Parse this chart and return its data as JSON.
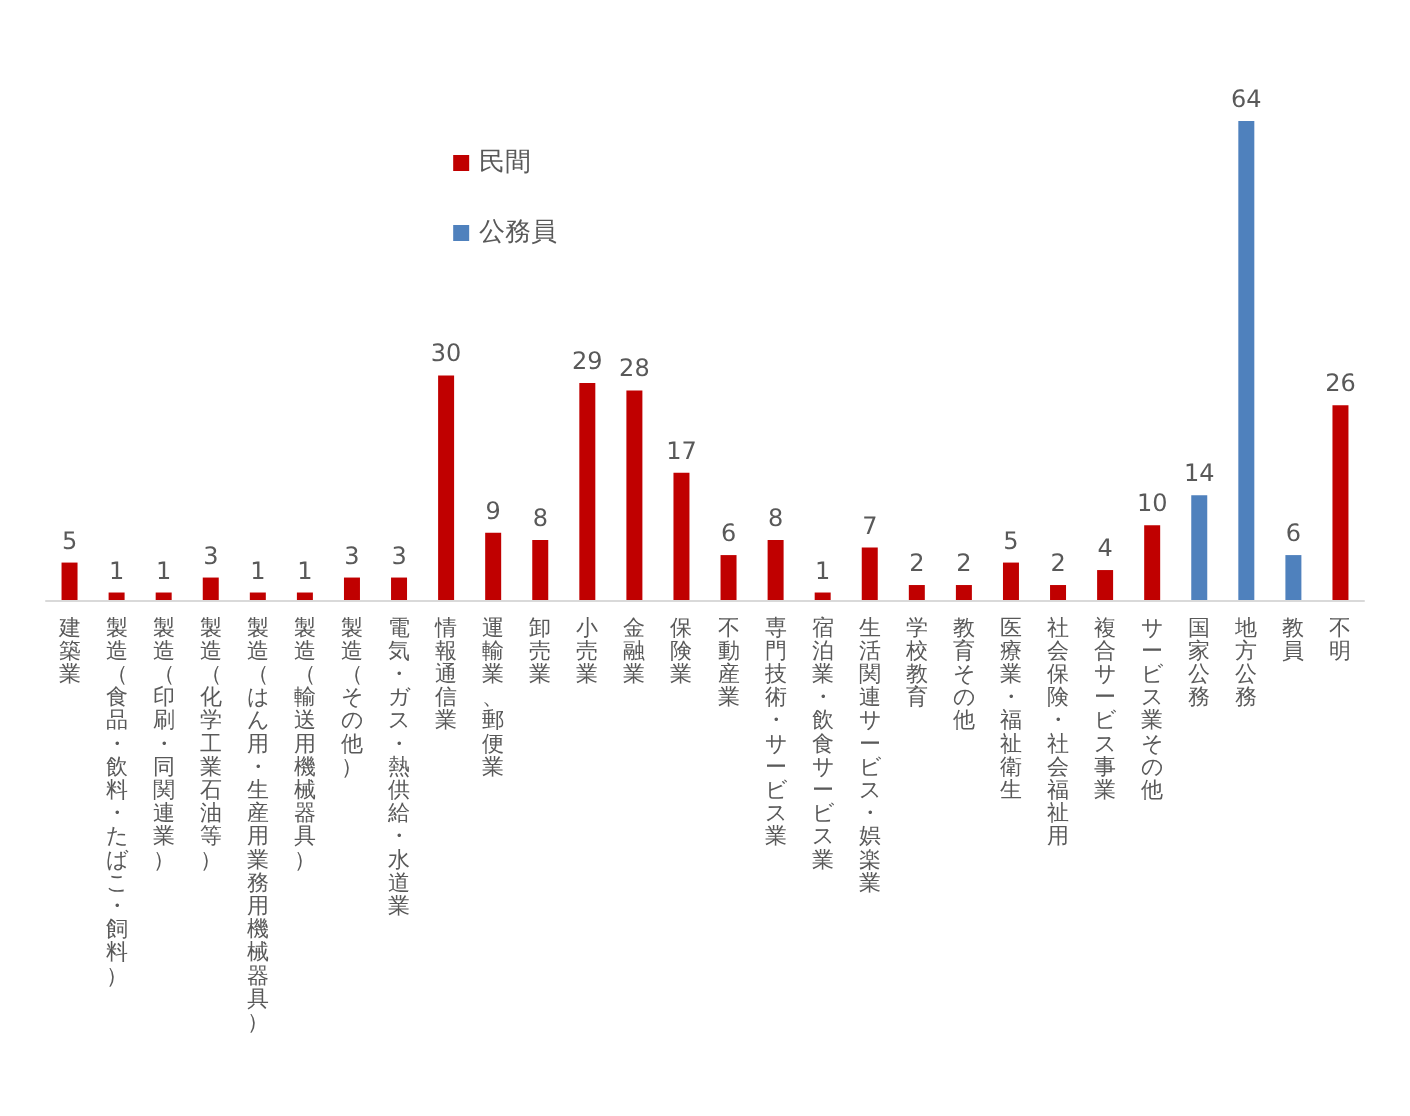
{
  "chart_data": {
    "type": "bar",
    "stacked": true,
    "data_labels": true,
    "legend": "top",
    "grid": false,
    "tick_labels": "x",
    "categories": [
      "建築業",
      "製造（食品・飲料・たばこ・飼料）",
      "製造（印刷・同関連業）",
      "製造（化学工業石油等）",
      "製造（はん用・生産用業務用機械器具）",
      "製造（輸送用機械器具）",
      "製造（その他）",
      "電気・ガス・熱供給・水道業",
      "情報通信業",
      "運輸業、郵便業",
      "卸売業",
      "小売業",
      "金融業",
      "保険業",
      "不動産業",
      "専門技術・サービス業",
      "宿泊業・飲食サービス業",
      "生活関連サービス・娯楽業",
      "学校教育",
      "教育その他",
      "医療業・福祉衛生",
      "社会保険・社会福祉用",
      "複合サービス事業",
      "サービス業その他",
      "国家公務",
      "地方公務",
      "教員",
      "不明"
    ],
    "series": [
      {
        "name": "民間",
        "color": "#c00000",
        "values": [
          5,
          1,
          1,
          3,
          1,
          1,
          3,
          3,
          30,
          9,
          8,
          29,
          28,
          17,
          6,
          8,
          1,
          7,
          2,
          2,
          5,
          2,
          4,
          10,
          null,
          null,
          null,
          26
        ]
      },
      {
        "name": "公務員",
        "color": "#4f81bd",
        "values": [
          null,
          null,
          null,
          null,
          null,
          null,
          null,
          null,
          null,
          null,
          null,
          null,
          null,
          null,
          null,
          null,
          null,
          null,
          null,
          null,
          null,
          null,
          null,
          null,
          14,
          64,
          6,
          null
        ]
      }
    ]
  }
}
